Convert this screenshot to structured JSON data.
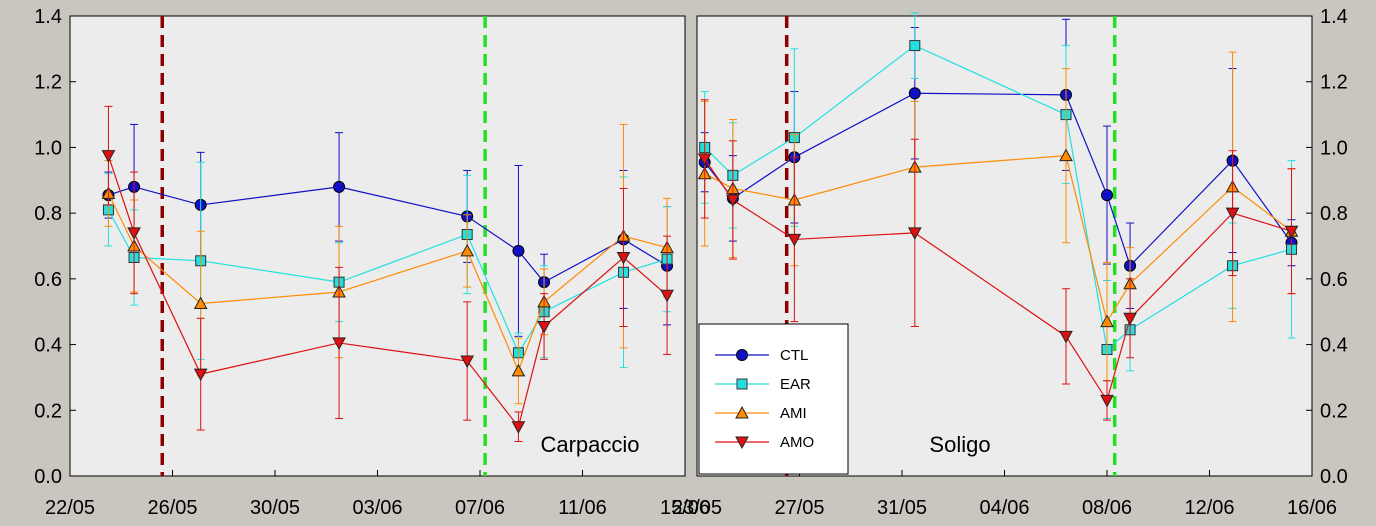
{
  "chart_data": [
    {
      "type": "line",
      "title": "Carpaccio",
      "xlabel": "",
      "ylabel": "",
      "ylim": [
        0,
        1.4
      ],
      "x_ticks": [
        "22/05",
        "26/05",
        "30/05",
        "03/06",
        "07/06",
        "11/06",
        "15/06"
      ],
      "y_ticks": [
        "0.0",
        "0.2",
        "0.4",
        "0.6",
        "0.8",
        "1.0",
        "1.2",
        "1.4"
      ],
      "grid": false,
      "vertical_lines": [
        {
          "x": 3.6,
          "color": "#8b0000",
          "style": "dashed"
        },
        {
          "x": 16.2,
          "color": "#22e022",
          "style": "dashed"
        }
      ],
      "series": [
        {
          "name": "CTL",
          "color": "#1010c8",
          "marker": "circle",
          "x": [
            1.5,
            2.5,
            5.1,
            10.5,
            15.5,
            17.5,
            18.5,
            21.6,
            23.3
          ],
          "y": [
            0.855,
            0.88,
            0.825,
            0.88,
            0.79,
            0.685,
            0.59,
            0.72,
            0.64
          ],
          "err": [
            0.07,
            0.19,
            0.16,
            0.165,
            0.14,
            0.26,
            0.085,
            0.21,
            0.18
          ]
        },
        {
          "name": "EAR",
          "color": "#22e0e0",
          "marker": "square",
          "x": [
            1.5,
            2.5,
            5.1,
            10.5,
            15.5,
            17.5,
            18.5,
            21.6,
            23.3
          ],
          "y": [
            0.81,
            0.665,
            0.655,
            0.59,
            0.735,
            0.375,
            0.5,
            0.62,
            0.66
          ],
          "err": [
            0.11,
            0.145,
            0.3,
            0.12,
            0.18,
            0.06,
            0.14,
            0.29,
            0.16
          ]
        },
        {
          "name": "AMI",
          "color": "#ff8c00",
          "marker": "triangle-up",
          "x": [
            1.5,
            2.5,
            5.1,
            10.5,
            15.5,
            17.5,
            18.5,
            21.6,
            23.3
          ],
          "y": [
            0.86,
            0.7,
            0.525,
            0.56,
            0.685,
            0.32,
            0.53,
            0.73,
            0.695
          ],
          "err": [
            0.1,
            0.14,
            0.22,
            0.2,
            0.11,
            0.1,
            0.1,
            0.34,
            0.15
          ]
        },
        {
          "name": "AMO",
          "color": "#e01010",
          "marker": "triangle-down",
          "x": [
            1.5,
            2.5,
            5.1,
            10.5,
            15.5,
            17.5,
            18.5,
            21.6,
            23.3
          ],
          "y": [
            0.975,
            0.74,
            0.31,
            0.405,
            0.35,
            0.15,
            0.455,
            0.665,
            0.55
          ],
          "err": [
            0.15,
            0.185,
            0.17,
            0.23,
            0.18,
            0.045,
            0.1,
            0.21,
            0.18
          ]
        }
      ]
    },
    {
      "type": "line",
      "title": "Soligo",
      "xlabel": "",
      "ylabel": "",
      "ylim": [
        0,
        1.4
      ],
      "x_ticks": [
        "23/05",
        "27/05",
        "31/05",
        "04/06",
        "08/06",
        "12/06",
        "16/06"
      ],
      "y_ticks": [
        "0.0",
        "0.2",
        "0.4",
        "0.6",
        "0.8",
        "1.0",
        "1.2",
        "1.4"
      ],
      "grid": false,
      "legend_position": "bottom-left",
      "vertical_lines": [
        {
          "x": 3.5,
          "color": "#8b0000",
          "style": "dashed"
        },
        {
          "x": 16.3,
          "color": "#22e022",
          "style": "dashed"
        }
      ],
      "series": [
        {
          "name": "CTL",
          "color": "#1010c8",
          "marker": "circle",
          "x": [
            0.3,
            1.4,
            3.8,
            8.5,
            14.4,
            16.0,
            16.9,
            20.9,
            23.2
          ],
          "y": [
            0.955,
            0.845,
            0.97,
            1.165,
            1.16,
            0.855,
            0.64,
            0.96,
            0.71
          ],
          "err": [
            0.09,
            0.13,
            0.2,
            0.2,
            0.23,
            0.21,
            0.13,
            0.28,
            0.07
          ]
        },
        {
          "name": "EAR",
          "color": "#22e0e0",
          "marker": "square",
          "x": [
            0.3,
            1.4,
            3.8,
            8.5,
            14.4,
            16.0,
            16.9,
            20.9,
            23.2
          ],
          "y": [
            1.0,
            0.915,
            1.03,
            1.31,
            1.1,
            0.385,
            0.445,
            0.64,
            0.69
          ],
          "err": [
            0.17,
            0.16,
            0.27,
            0.1,
            0.21,
            0.21,
            0.125,
            0.13,
            0.27
          ]
        },
        {
          "name": "AMI",
          "color": "#ff8c00",
          "marker": "triangle-up",
          "x": [
            0.3,
            1.4,
            3.8,
            8.5,
            14.4,
            16.0,
            16.9,
            20.9,
            23.2
          ],
          "y": [
            0.92,
            0.875,
            0.84,
            0.94,
            0.975,
            0.47,
            0.585,
            0.88,
            0.745
          ],
          "err": [
            0.22,
            0.21,
            0.2,
            0.2,
            0.265,
            0.18,
            0.11,
            0.41,
            0.19
          ]
        },
        {
          "name": "AMO",
          "color": "#e01010",
          "marker": "triangle-down",
          "x": [
            0.3,
            1.4,
            3.8,
            8.5,
            14.4,
            16.0,
            16.9,
            20.9,
            23.2
          ],
          "y": [
            0.965,
            0.84,
            0.72,
            0.74,
            0.425,
            0.23,
            0.48,
            0.8,
            0.745
          ],
          "err": [
            0.18,
            0.18,
            0.25,
            0.285,
            0.145,
            0.06,
            0.12,
            0.19,
            0.19
          ]
        }
      ]
    }
  ],
  "legend": {
    "items": [
      {
        "name": "CTL",
        "color": "#1010c8",
        "marker": "circle"
      },
      {
        "name": "EAR",
        "color": "#22e0e0",
        "marker": "square"
      },
      {
        "name": "AMI",
        "color": "#ff8c00",
        "marker": "triangle-up"
      },
      {
        "name": "AMO",
        "color": "#e01010",
        "marker": "triangle-down"
      }
    ]
  },
  "colors": {
    "page_background": "#c9c6c0",
    "plot_background": "#ececec"
  }
}
